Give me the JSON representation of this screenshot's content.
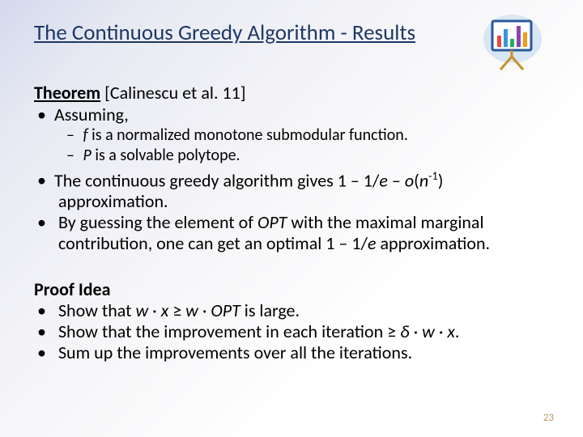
{
  "title": "The Continuous Greedy Algorithm - Results",
  "theorem": {
    "label": "Theorem",
    "cite": " [Calinescu et al. 11]"
  },
  "bullets": {
    "assuming": "Assuming,",
    "sub1_pre": "f",
    "sub1_post": " is a normalized monotone submodular function.",
    "sub2_pre": "P",
    "sub2_post": " is a solvable polytope.",
    "b2_a": "The continuous greedy algorithm gives 1 – 1/",
    "b2_e": "e",
    "b2_b": " – ",
    "b2_o": "o",
    "b2_c": "(",
    "b2_n": "n",
    "b2_exp": "-1",
    "b2_d": ")",
    "b2_cont": "approximation.",
    "b3_a": "By guessing the element of ",
    "b3_opt": "OPT",
    "b3_b": " with the maximal marginal",
    "b3_cont_a": "contribution, one can get an optimal 1 – 1/",
    "b3_cont_e": "e",
    "b3_cont_b": " approximation."
  },
  "proof": {
    "head": "Proof Idea",
    "p1_a": "Show that ",
    "p1_w": "w",
    "p1_b": " · ",
    "p1_x": "x",
    "p1_c": " ≥ ",
    "p1_w2": "w",
    "p1_d": " · ",
    "p1_opt": "OPT",
    "p1_e": " is large.",
    "p2_a": "Show that the improvement in each iteration ≥ ",
    "p2_delta": "δ",
    "p2_b": " · ",
    "p2_w": "w",
    "p2_c": " · ",
    "p2_x": "x",
    "p2_d": ".",
    "p3": "Sum up the improvements over all the iterations."
  },
  "pagenum": "23",
  "chart": {
    "frame_color": "#2a5a9a",
    "board_bg": "#ffffff",
    "leg_color": "#c89028",
    "bars": [
      {
        "x": 20,
        "h": 14,
        "color": "#e74c3c"
      },
      {
        "x": 28,
        "h": 22,
        "color": "#3498db"
      },
      {
        "x": 36,
        "h": 10,
        "color": "#27ae60"
      },
      {
        "x": 44,
        "h": 26,
        "color": "#8e44ad"
      },
      {
        "x": 52,
        "h": 18,
        "color": "#f39c12"
      }
    ]
  }
}
